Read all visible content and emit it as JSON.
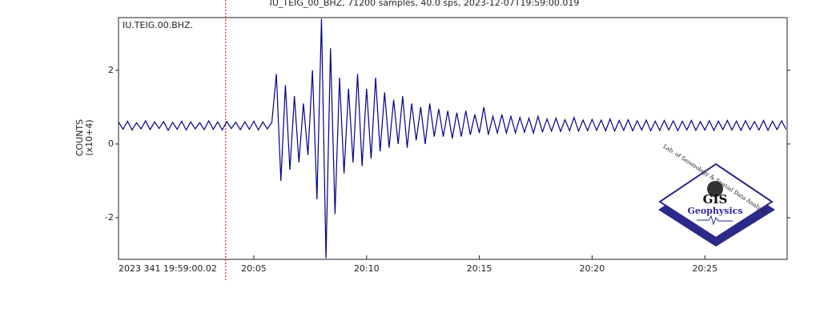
{
  "chart_data": {
    "type": "line",
    "title": "IU_TEIG_00_BHZ, 71200 samples, 40.0 sps, 2023-12-07T19:59:00.019",
    "station_label": "IU.TEIG.00.BHZ.",
    "y_label": "COUNTS",
    "y_unit_label": "(x10+4)",
    "x": [
      1199.0,
      1199.2,
      1199.4,
      1199.6,
      1199.8,
      1200.0,
      1200.2,
      1200.4,
      1200.6,
      1200.8,
      1201.0,
      1201.2,
      1201.4,
      1201.6,
      1201.8,
      1202.0,
      1202.2,
      1202.4,
      1202.6,
      1202.8,
      1203.0,
      1203.2,
      1203.4,
      1203.6,
      1203.8,
      1204.0,
      1204.2,
      1204.4,
      1204.6,
      1204.8,
      1205.0,
      1205.2,
      1205.4,
      1205.6,
      1205.8,
      1206.0,
      1206.2,
      1206.4,
      1206.6,
      1206.8,
      1207.0,
      1207.2,
      1207.4,
      1207.6,
      1207.8,
      1208.0,
      1208.2,
      1208.4,
      1208.6,
      1208.8,
      1209.0,
      1209.2,
      1209.4,
      1209.6,
      1209.8,
      1210.0,
      1210.2,
      1210.4,
      1210.6,
      1210.8,
      1211.0,
      1211.2,
      1211.4,
      1211.6,
      1211.8,
      1212.0,
      1212.2,
      1212.4,
      1212.6,
      1212.8,
      1213.0,
      1213.2,
      1213.4,
      1213.6,
      1213.8,
      1214.0,
      1214.2,
      1214.4,
      1214.6,
      1214.8,
      1215.0,
      1215.2,
      1215.4,
      1215.6,
      1215.8,
      1216.0,
      1216.2,
      1216.4,
      1216.6,
      1216.8,
      1217.0,
      1217.2,
      1217.4,
      1217.6,
      1217.8,
      1218.0,
      1218.2,
      1218.4,
      1218.6,
      1218.8,
      1219.0,
      1219.2,
      1219.4,
      1219.6,
      1219.8,
      1220.0,
      1220.2,
      1220.4,
      1220.6,
      1220.8,
      1221.0,
      1221.2,
      1221.4,
      1221.6,
      1221.8,
      1222.0,
      1222.2,
      1222.4,
      1222.6,
      1222.8,
      1223.0,
      1223.2,
      1223.4,
      1223.6,
      1223.8,
      1224.0,
      1224.2,
      1224.4,
      1224.6,
      1224.8,
      1225.0,
      1225.2,
      1225.4,
      1225.6,
      1225.8,
      1226.0,
      1226.2,
      1226.4,
      1226.6,
      1226.8,
      1227.0,
      1227.2,
      1227.4,
      1227.6,
      1227.8,
      1228.0,
      1228.2,
      1228.4,
      1228.6
    ],
    "series": [
      {
        "color": "#00008b",
        "values": [
          0.6,
          0.4,
          0.62,
          0.38,
          0.58,
          0.41,
          0.63,
          0.39,
          0.6,
          0.42,
          0.61,
          0.37,
          0.59,
          0.4,
          0.62,
          0.38,
          0.6,
          0.41,
          0.58,
          0.39,
          0.63,
          0.4,
          0.6,
          0.38,
          0.61,
          0.42,
          0.59,
          0.39,
          0.6,
          0.4,
          0.62,
          0.38,
          0.6,
          0.41,
          0.59,
          1.9,
          -1.0,
          1.6,
          -0.7,
          1.3,
          -0.5,
          1.1,
          -0.3,
          2.0,
          -1.5,
          3.4,
          -3.1,
          2.6,
          -1.9,
          1.8,
          -0.8,
          1.5,
          -0.5,
          1.9,
          -0.6,
          1.5,
          -0.4,
          1.8,
          -0.2,
          1.4,
          -0.1,
          1.2,
          0.0,
          1.3,
          -0.1,
          1.1,
          0.1,
          1.0,
          0.0,
          1.1,
          0.2,
          0.95,
          0.2,
          0.9,
          0.15,
          0.85,
          0.2,
          0.9,
          0.25,
          0.8,
          0.3,
          1.0,
          0.25,
          0.75,
          0.3,
          0.8,
          0.3,
          0.75,
          0.3,
          0.72,
          0.32,
          0.7,
          0.3,
          0.75,
          0.33,
          0.68,
          0.35,
          0.7,
          0.34,
          0.66,
          0.36,
          0.72,
          0.35,
          0.65,
          0.36,
          0.67,
          0.37,
          0.65,
          0.36,
          0.68,
          0.35,
          0.64,
          0.37,
          0.66,
          0.36,
          0.63,
          0.38,
          0.65,
          0.36,
          0.62,
          0.37,
          0.64,
          0.38,
          0.63,
          0.36,
          0.62,
          0.38,
          0.64,
          0.37,
          0.61,
          0.38,
          0.63,
          0.37,
          0.62,
          0.39,
          0.64,
          0.38,
          0.62,
          0.37,
          0.63,
          0.39,
          0.61,
          0.38,
          0.64,
          0.37,
          0.62,
          0.39,
          0.63,
          0.4
        ]
      }
    ],
    "xlim": [
      1199,
      1228.65
    ],
    "ylim": [
      -3.13,
      3.43
    ],
    "xticks": [
      {
        "value": 1199,
        "label": "2023 341 19:59:00.02"
      },
      {
        "value": 1205,
        "label": "20:05"
      },
      {
        "value": 1210,
        "label": "20:10"
      },
      {
        "value": 1215,
        "label": "20:15"
      },
      {
        "value": 1220,
        "label": "20:20"
      },
      {
        "value": 1225,
        "label": "20:25"
      }
    ],
    "yticks": [
      -2,
      0,
      2
    ],
    "marker_x": 1203.75,
    "marker_color": "#cc0000",
    "logo": {
      "caption": "Lab. of Seismology & Spatial Data Analysis",
      "name": "GIS",
      "subtitle": "Geophysics"
    }
  }
}
